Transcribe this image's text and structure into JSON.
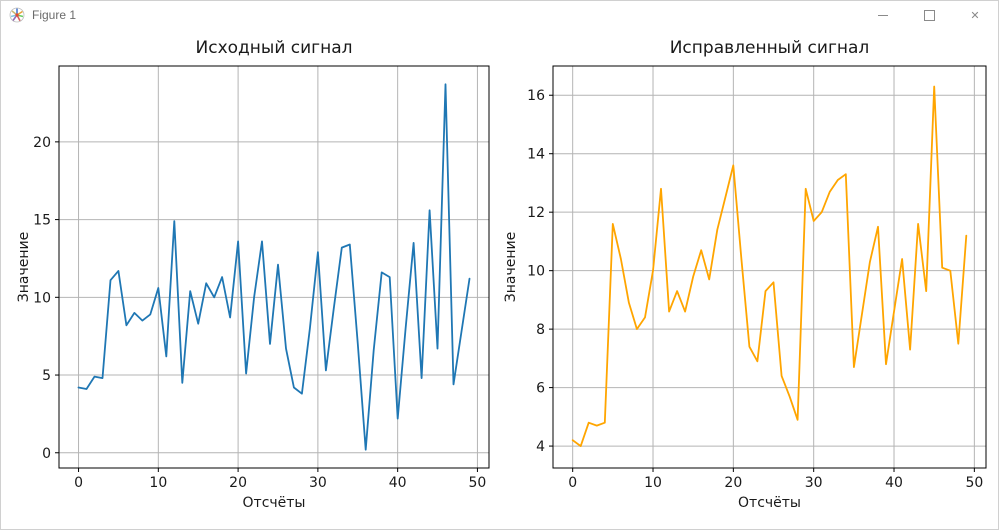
{
  "window": {
    "title": "Figure 1",
    "controls": {
      "minimize_glyph": "─",
      "maximize_glyph": "□",
      "close_glyph": "✕"
    }
  },
  "chart_data": [
    {
      "type": "line",
      "title": "Исходный сигнал",
      "xlabel": "Отсчёты",
      "ylabel": "Значение",
      "line_color": "#1f77b4",
      "grid": true,
      "legend": null,
      "x_ticks": [
        0,
        10,
        20,
        30,
        40,
        50
      ],
      "y_ticks": [
        0,
        5,
        10,
        15,
        20
      ],
      "xlim": [
        -2.45,
        51.45
      ],
      "ylim": [
        -0.98,
        24.88
      ],
      "x_range": [
        0,
        49
      ],
      "x_step": 1,
      "values": [
        4.2,
        4.1,
        4.9,
        4.8,
        11.1,
        11.7,
        8.2,
        9.0,
        8.5,
        8.9,
        10.6,
        6.2,
        14.9,
        4.5,
        10.4,
        8.3,
        10.9,
        10.0,
        11.3,
        8.7,
        13.6,
        5.1,
        10.0,
        13.6,
        7.0,
        12.1,
        6.7,
        4.2,
        3.8,
        8.0,
        12.9,
        5.3,
        9.3,
        13.2,
        13.4,
        7.0,
        0.2,
        6.6,
        11.6,
        11.3,
        2.2,
        8.0,
        13.5,
        4.8,
        15.6,
        6.7,
        23.7,
        4.4,
        7.8,
        11.2
      ]
    },
    {
      "type": "line",
      "title": "Исправленный сигнал",
      "xlabel": "Отсчёты",
      "ylabel": "Значение",
      "line_color": "#ffa500",
      "grid": true,
      "legend": null,
      "x_ticks": [
        0,
        10,
        20,
        30,
        40,
        50
      ],
      "y_ticks": [
        4,
        6,
        8,
        10,
        12,
        14,
        16
      ],
      "xlim": [
        -2.45,
        51.45
      ],
      "ylim": [
        3.25,
        17.0
      ],
      "x_range": [
        0,
        49
      ],
      "x_step": 1,
      "values": [
        4.2,
        4.0,
        4.8,
        4.7,
        4.8,
        11.6,
        10.4,
        8.9,
        8.0,
        8.4,
        10.0,
        12.8,
        8.6,
        9.3,
        8.6,
        9.8,
        10.7,
        9.7,
        11.4,
        12.5,
        13.6,
        10.4,
        7.4,
        6.9,
        9.3,
        9.6,
        6.4,
        5.7,
        4.9,
        12.8,
        11.7,
        12.0,
        12.7,
        13.1,
        13.3,
        6.7,
        8.5,
        10.3,
        11.5,
        6.8,
        8.6,
        10.4,
        7.3,
        11.6,
        9.3,
        16.3,
        10.1,
        10.0,
        7.5,
        11.2
      ]
    }
  ]
}
